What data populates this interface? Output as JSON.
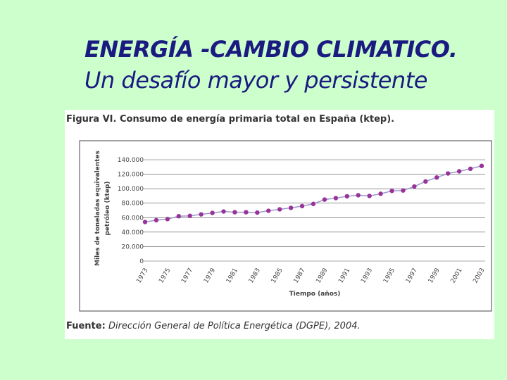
{
  "slide": {
    "title_line1": "ENERGÍA -CAMBIO CLIMATICO.",
    "title_line2": "Un desafío mayor y persistente"
  },
  "figure": {
    "caption": "Figura VI. Consumo de energía primaria total en España (ktep).",
    "source_label": "Fuente:",
    "source_text": "Dirección General de Política Energética (DGPE), 2004."
  },
  "colors": {
    "series": "#993399",
    "line": "#9999cc",
    "background": "#ccffcc",
    "title": "#1a1a80"
  },
  "chart_data": {
    "type": "line",
    "title": "Figura VI. Consumo de energía primaria total en España (ktep).",
    "xlabel": "Tiempo (años)",
    "ylabel_line1": "Miles de toneladas equivalentes",
    "ylabel_line2": "petróleo (ktep)",
    "ylim": [
      0,
      140000
    ],
    "yticks": [
      0,
      20000,
      40000,
      60000,
      80000,
      100000,
      120000,
      140000
    ],
    "ytick_labels": [
      "0",
      "20.000",
      "40.000",
      "60.000",
      "80.000",
      "100.000",
      "120.000",
      "140.000"
    ],
    "xtick_labels": [
      "1973",
      "1975",
      "1977",
      "1979",
      "1981",
      "1983",
      "1985",
      "1987",
      "1989",
      "1991",
      "1993",
      "1995",
      "1997",
      "1999",
      "2001",
      "2003"
    ],
    "grid": true,
    "legend": "none",
    "x": [
      1973,
      1974,
      1975,
      1976,
      1977,
      1978,
      1979,
      1980,
      1981,
      1982,
      1983,
      1984,
      1985,
      1986,
      1987,
      1988,
      1989,
      1990,
      1991,
      1992,
      1993,
      1994,
      1995,
      1996,
      1997,
      1998,
      1999,
      2000,
      2001,
      2002,
      2003
    ],
    "values": [
      54000,
      56500,
      58000,
      62000,
      62500,
      64500,
      66500,
      68500,
      67500,
      67500,
      67000,
      69500,
      71500,
      73500,
      76000,
      79000,
      85000,
      87000,
      89500,
      91000,
      90000,
      93000,
      97000,
      97500,
      103000,
      110000,
      115500,
      121000,
      124000,
      127500,
      131500
    ]
  }
}
